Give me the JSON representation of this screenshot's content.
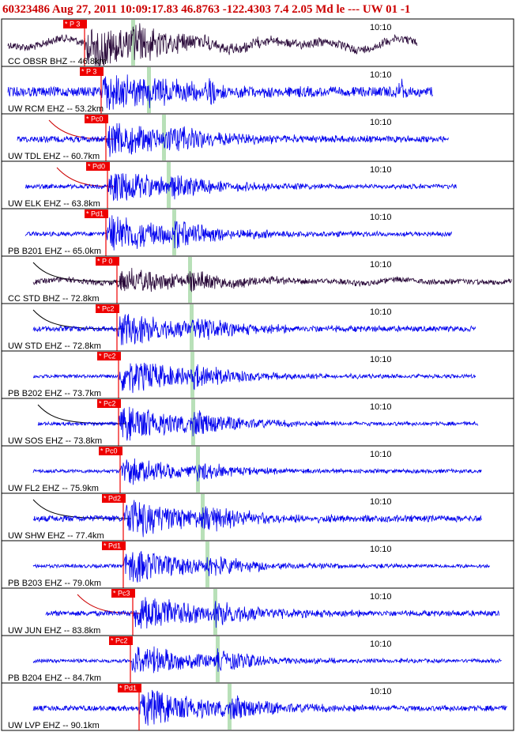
{
  "header": {
    "text": "60323486 Aug 27, 2011 10:09:17.83    46.8763 -122.4303  7.4 2.05 Md le ---  UW 01   -1"
  },
  "colors": {
    "trace_blue": "#0000ee",
    "trace_dark": "#2a0a3a",
    "pick_box": "#ee0000",
    "theoretical_marker": "#b8e0b8",
    "tail_black": "#000000",
    "tail_red": "#cc0000"
  },
  "chart_data": {
    "type": "seismogram",
    "time_label": "10:10",
    "event_time": "Aug 27, 2011 10:09:17.83",
    "series": [
      {
        "label": "CC OBSR BHZ -- 46.8km",
        "pick": "P 3",
        "color": "dark",
        "tail": "none",
        "distance_km": 46.8
      },
      {
        "label": "UW RCM EHZ -- 53.2km",
        "pick": "P 3",
        "color": "blue",
        "tail": "none",
        "distance_km": 53.2
      },
      {
        "label": "UW TDL EHZ -- 60.7km",
        "pick": "Pc0",
        "color": "blue",
        "tail": "red",
        "distance_km": 60.7
      },
      {
        "label": "UW ELK EHZ -- 63.8km",
        "pick": "Pd0",
        "color": "blue",
        "tail": "red",
        "distance_km": 63.8
      },
      {
        "label": "PB B201 EHZ -- 65.0km",
        "pick": "Pd1",
        "color": "blue",
        "tail": "none",
        "distance_km": 65.0
      },
      {
        "label": "CC STD BHZ -- 72.8km",
        "pick": "P 0",
        "color": "dark",
        "tail": "black",
        "distance_km": 72.8
      },
      {
        "label": "UW STD EHZ -- 72.8km",
        "pick": "Pc2",
        "color": "blue",
        "tail": "black",
        "distance_km": 72.8
      },
      {
        "label": "PB B202 EHZ -- 73.7km",
        "pick": "Pc2",
        "color": "blue",
        "tail": "none",
        "distance_km": 73.7
      },
      {
        "label": "UW SOS EHZ -- 73.8km",
        "pick": "Pc2",
        "color": "blue",
        "tail": "black",
        "distance_km": 73.8
      },
      {
        "label": "UW FL2 EHZ -- 75.9km",
        "pick": "Pc0",
        "color": "blue",
        "tail": "none",
        "distance_km": 75.9
      },
      {
        "label": "UW SHW EHZ -- 77.4km",
        "pick": "Pd2",
        "color": "blue",
        "tail": "black",
        "distance_km": 77.4
      },
      {
        "label": "PB B203 EHZ -- 79.0km",
        "pick": "Pd1",
        "color": "blue",
        "tail": "none",
        "distance_km": 79.0
      },
      {
        "label": "UW JUN EHZ -- 83.8km",
        "pick": "Pc3",
        "color": "blue",
        "tail": "red",
        "distance_km": 83.8
      },
      {
        "label": "PB B204 EHZ -- 84.7km",
        "pick": "Pc2",
        "color": "blue",
        "tail": "none",
        "distance_km": 84.7
      },
      {
        "label": "UW LVP EHZ -- 90.1km",
        "pick": "Pd1",
        "color": "blue",
        "tail": "none",
        "distance_km": 90.1
      }
    ]
  }
}
